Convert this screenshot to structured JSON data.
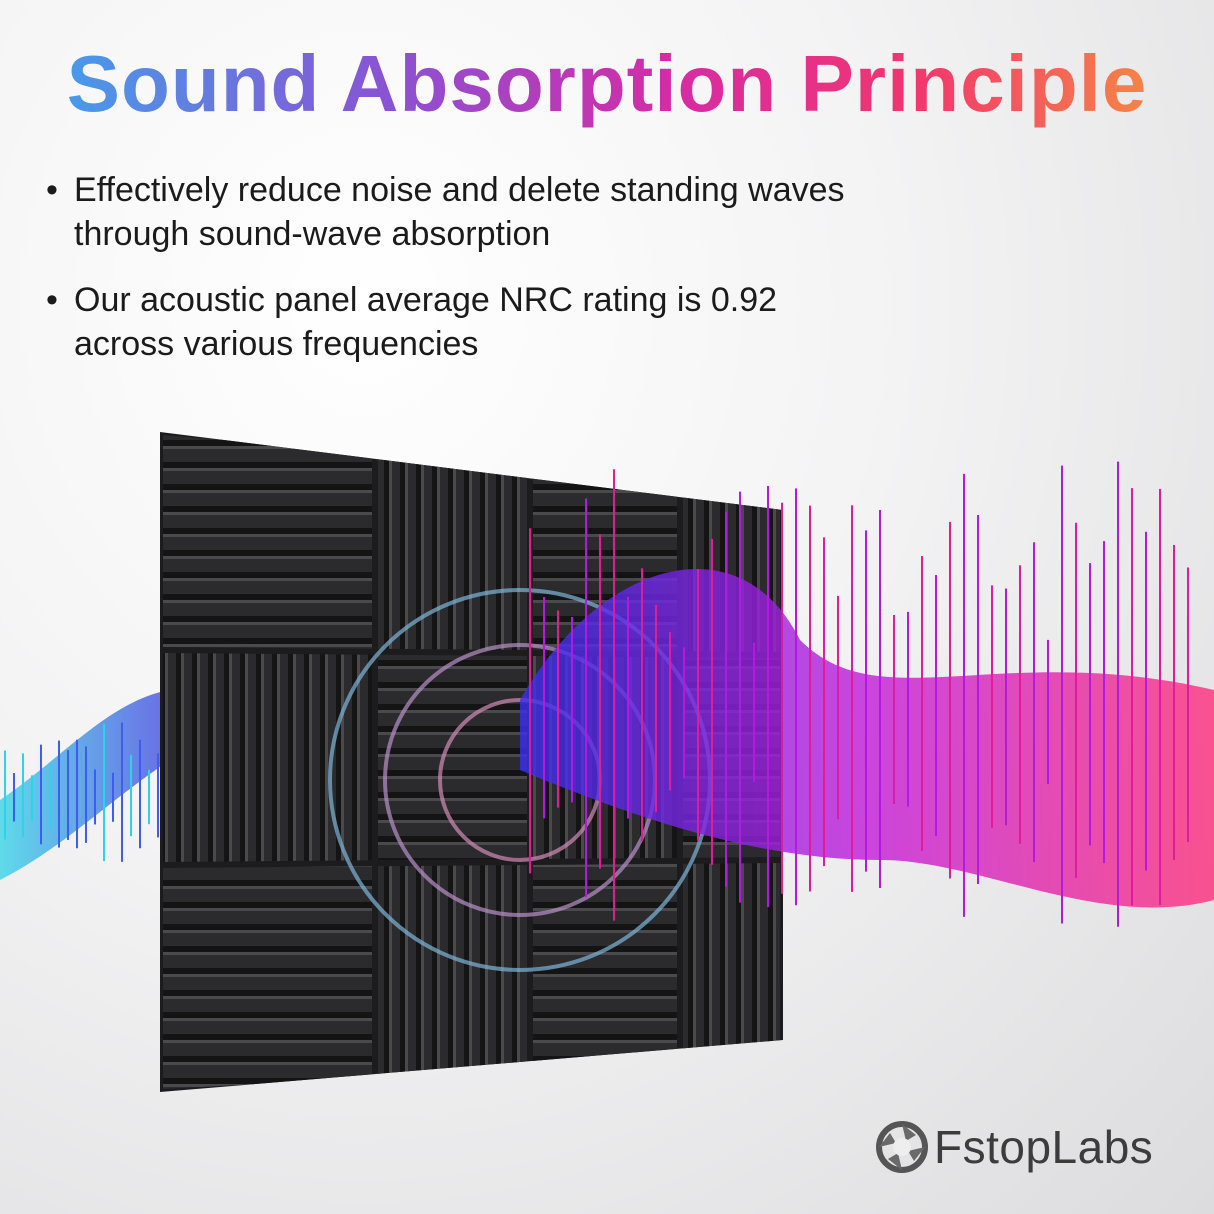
{
  "title": "Sound Absorption Principle",
  "bullets": [
    {
      "line1": "Effectively reduce noise and delete standing waves",
      "line2": "through sound-wave absorption"
    },
    {
      "line1": "Our acoustic panel average NRC rating is 0.92",
      "line2": "across various frequencies"
    }
  ],
  "bullet_glyph": "•",
  "brand": {
    "name": "FstopLabs",
    "icon": "aperture-icon"
  },
  "colors": {
    "title_start": "#3aa9ee",
    "title_mid": "#d62ba6",
    "title_end": "#f79a3a",
    "panel": "#2a2a2c",
    "wave_left": "#2fd3e8",
    "wave_right": "#e01c9a"
  }
}
